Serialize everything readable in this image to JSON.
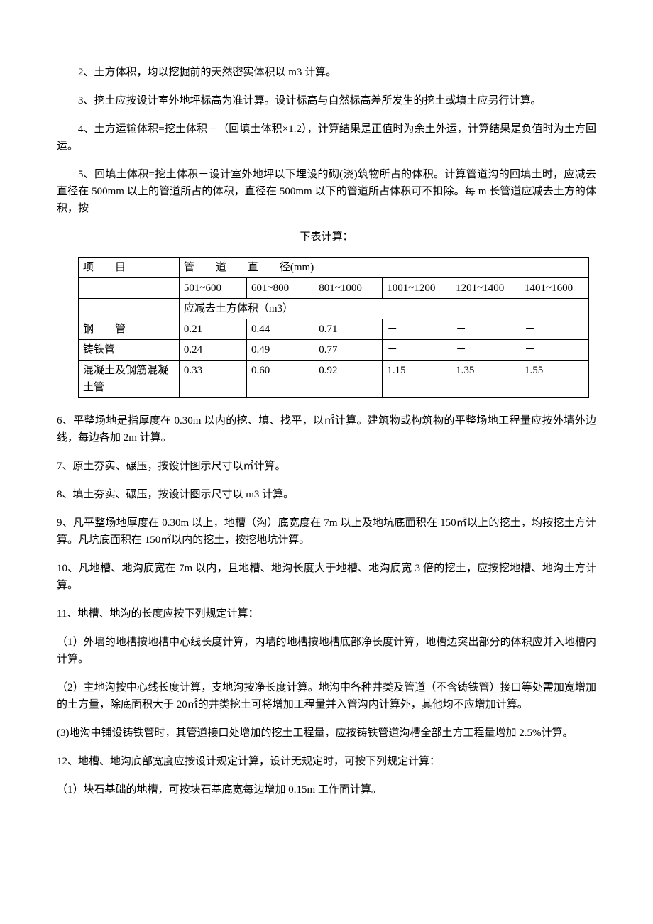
{
  "paragraphs": {
    "p2": "2、土方体积，均以挖掘前的天然密实体积以 m3 计算。",
    "p3": "3、挖土应按设计室外地坪标高为准计算。设计标高与自然标高差所发生的挖土或填土应另行计算。",
    "p4": "4、土方运输体积=挖土体积－（回填土体积×1.2），计算结果是正值时为余土外运，计算结果是负值时为土方回运。",
    "p5a": "5、回填土体积=挖土体积－设计室外地坪以下埋设的砌(浇)筑物所占的体积。计算管道沟的回填土时，应减去直径在 500mm 以上的管道所占的体积，直径在 500mm 以下的管道所占体积可不扣除。每 m 长管道应减去土方的体积，按",
    "p5b": "下表计算：",
    "p6": "6、平整场地是指厚度在 0.30m 以内的挖、填、找平，以㎡计算。建筑物或构筑物的平整场地工程量应按外墙外边线，每边各加 2m 计算。",
    "p7": "7、原土夯实、碾压，按设计图示尺寸以㎡计算。",
    "p8": "8、填土夯实、碾压，按设计图示尺寸以 m3 计算。",
    "p9": "9、凡平整场地厚度在 0.30m 以上，地槽（沟）底宽度在 7m 以上及地坑底面积在 150㎡以上的挖土，均按挖土方计算。凡坑底面积在 150㎡以内的挖土，按挖地坑计算。",
    "p10": "10、凡地槽、地沟底宽在 7m 以内，且地槽、地沟长度大于地槽、地沟底宽 3 倍的挖土，应按挖地槽、地沟土方计算。",
    "p11": "11、地槽、地沟的长度应按下列规定计算：",
    "p11_1": "（1）外墙的地槽按地槽中心线长度计算，内墙的地槽按地槽底部净长度计算，地槽边突出部分的体积应并入地槽内计算。",
    "p11_2": "（2）主地沟按中心线长度计算，支地沟按净长度计算。地沟中各种井类及管道（不含铸铁管）接口等处需加宽增加的土方量，除底面积大于 20㎡的井类挖土可将增加工程量并入管沟内计算外，其他均不应增加计算。",
    "p11_3": "(3)地沟中铺设铸铁管时，其管道接口处增加的挖土工程量，应按铸铁管道沟槽全部土方工程量增加 2.5%计算。",
    "p12": "12、地槽、地沟底部宽度应按设计规定计算，设计无规定时，可按下列规定计算：",
    "p12_1": "（1）块石基础的地槽，可按块石基底宽每边增加 0.15m 工作面计算。"
  },
  "table": {
    "header_item_label": "项　　目",
    "header_main": "管　　道　　直　　径(mm)",
    "columns": [
      "501~600",
      "601~800",
      "801~1000",
      "1001~1200",
      "1201~1400",
      "1401~1600"
    ],
    "subheader": "应减去土方体积（m3）",
    "rows": [
      {
        "label": "钢　　管",
        "cells": [
          "0.21",
          "0.44",
          "0.71",
          "－",
          "－",
          "－"
        ]
      },
      {
        "label": "铸铁管",
        "cells": [
          "0.24",
          "0.49",
          "0.77",
          "－",
          "－",
          "－"
        ]
      },
      {
        "label": "混凝土及钢筋混凝土管",
        "cells": [
          "0.33",
          "0.60",
          "0.92",
          "1.15",
          "1.35",
          "1.55"
        ]
      }
    ]
  }
}
